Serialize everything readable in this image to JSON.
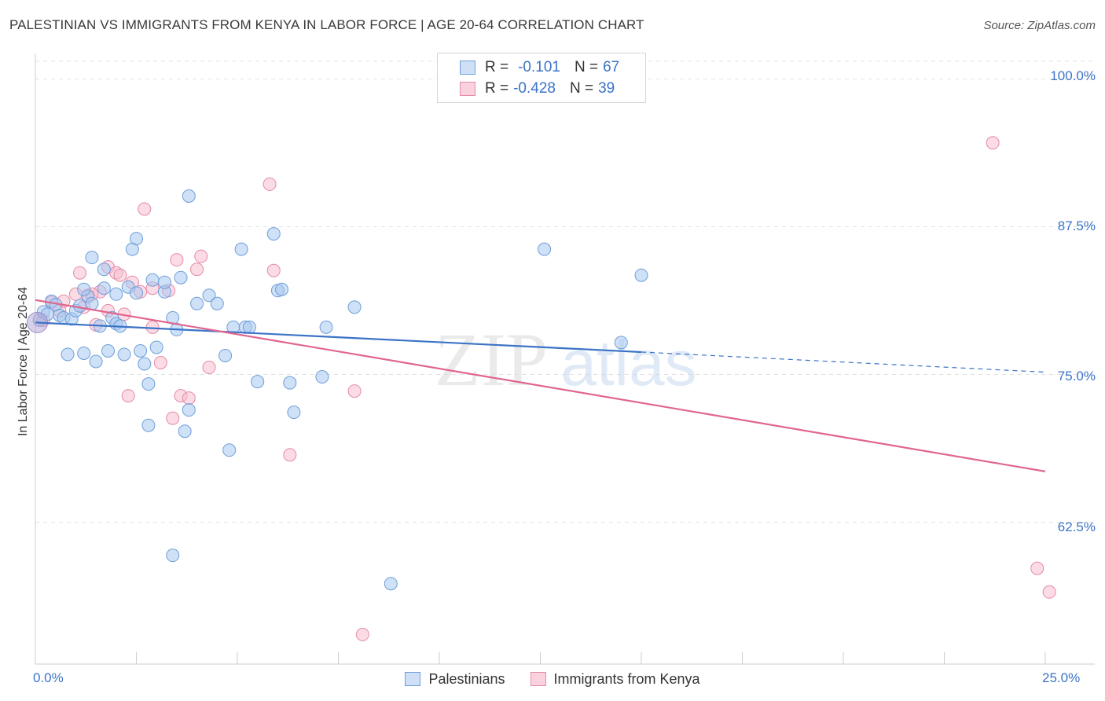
{
  "header": {
    "title": "PALESTINIAN VS IMMIGRANTS FROM KENYA IN LABOR FORCE | AGE 20-64 CORRELATION CHART",
    "source": "Source: ZipAtlas.com"
  },
  "watermark": {
    "text1": "ZIP",
    "text2": "atlas"
  },
  "legend": {
    "rows": [
      {
        "r_label": "R =",
        "r_value": "-0.101",
        "n_label": "N =",
        "n_value": "67",
        "color": "#a8c8f0",
        "border": "#6f9ed8"
      },
      {
        "r_label": "R =",
        "r_value": "-0.428",
        "n_label": "N =",
        "n_value": "39",
        "color": "#f8c0d0",
        "border": "#e48aa8"
      }
    ]
  },
  "bottom_legend": {
    "items": [
      {
        "label": "Palestinians",
        "color": "#a8c8f0",
        "border": "#6f9ed8"
      },
      {
        "label": "Immigrants from Kenya",
        "color": "#f8c0d0",
        "border": "#e48aa8"
      }
    ]
  },
  "chart_data": {
    "type": "scatter",
    "title": "PALESTINIAN VS IMMIGRANTS FROM KENYA IN LABOR FORCE | AGE 20-64 CORRELATION CHART",
    "xlabel": "",
    "ylabel": "In Labor Force | Age 20-64",
    "xlim": [
      0,
      25
    ],
    "ylim": [
      50.5,
      101.5
    ],
    "x_tick_labels": [
      "0.0%",
      "25.0%"
    ],
    "y_ticks": [
      62.5,
      75.0,
      87.5,
      100.0
    ],
    "y_tick_labels": [
      "62.5%",
      "75.0%",
      "87.5%",
      "100.0%"
    ],
    "grid": true,
    "legend_placement": "top-center",
    "series": [
      {
        "name": "Palestinians",
        "color": "#6f9ed8",
        "fill": "#a8c8f0",
        "trend": {
          "x0": 0,
          "y0": 79.4,
          "x1": 15,
          "y1": 76.9,
          "dash_to_x": 25,
          "dash_to_y": 75.2
        },
        "points": [
          [
            0.1,
            79.6
          ],
          [
            0.2,
            80.3
          ],
          [
            0.3,
            80.1
          ],
          [
            0.4,
            81.2
          ],
          [
            0.5,
            80.9
          ],
          [
            0.6,
            80.0
          ],
          [
            0.7,
            79.8
          ],
          [
            0.8,
            76.7
          ],
          [
            0.9,
            79.7
          ],
          [
            1.0,
            80.4
          ],
          [
            1.1,
            80.8
          ],
          [
            1.2,
            76.8
          ],
          [
            1.3,
            81.6
          ],
          [
            1.4,
            81.0
          ],
          [
            1.4,
            84.9
          ],
          [
            1.5,
            76.1
          ],
          [
            1.6,
            79.1
          ],
          [
            1.7,
            82.3
          ],
          [
            1.7,
            83.9
          ],
          [
            1.8,
            77.0
          ],
          [
            1.9,
            79.8
          ],
          [
            2.0,
            79.3
          ],
          [
            2.1,
            79.1
          ],
          [
            2.2,
            76.7
          ],
          [
            2.3,
            82.4
          ],
          [
            2.4,
            85.6
          ],
          [
            2.5,
            81.9
          ],
          [
            2.5,
            86.5
          ],
          [
            2.6,
            77.0
          ],
          [
            2.7,
            75.9
          ],
          [
            2.8,
            74.2
          ],
          [
            2.8,
            70.7
          ],
          [
            2.9,
            83.0
          ],
          [
            3.0,
            77.3
          ],
          [
            3.2,
            82.0
          ],
          [
            3.2,
            82.8
          ],
          [
            3.4,
            79.8
          ],
          [
            3.5,
            78.8
          ],
          [
            3.6,
            83.2
          ],
          [
            3.7,
            70.2
          ],
          [
            3.8,
            90.1
          ],
          [
            3.8,
            72.0
          ],
          [
            4.0,
            81.0
          ],
          [
            4.3,
            81.7
          ],
          [
            4.5,
            81.0
          ],
          [
            4.7,
            76.6
          ],
          [
            4.8,
            68.6
          ],
          [
            4.9,
            79.0
          ],
          [
            5.1,
            85.6
          ],
          [
            5.2,
            79.0
          ],
          [
            5.3,
            79.0
          ],
          [
            5.5,
            74.4
          ],
          [
            5.9,
            86.9
          ],
          [
            6.0,
            82.1
          ],
          [
            6.1,
            82.2
          ],
          [
            6.3,
            74.3
          ],
          [
            6.4,
            71.8
          ],
          [
            7.1,
            74.8
          ],
          [
            7.2,
            79.0
          ],
          [
            7.9,
            80.7
          ],
          [
            12.6,
            85.6
          ],
          [
            14.5,
            77.7
          ],
          [
            15.0,
            83.4
          ],
          [
            3.4,
            59.7
          ],
          [
            8.8,
            57.3
          ],
          [
            1.2,
            82.2
          ],
          [
            2.0,
            81.8
          ]
        ]
      },
      {
        "name": "Immigrants from Kenya",
        "color": "#e48aa8",
        "fill": "#f8c0d0",
        "trend": {
          "x0": 0,
          "y0": 81.3,
          "x1": 25,
          "y1": 66.8
        },
        "points": [
          [
            0.2,
            79.6
          ],
          [
            0.4,
            81.1
          ],
          [
            0.6,
            80.4
          ],
          [
            0.7,
            81.2
          ],
          [
            1.0,
            81.8
          ],
          [
            1.1,
            83.6
          ],
          [
            1.2,
            80.7
          ],
          [
            1.3,
            81.7
          ],
          [
            1.5,
            79.2
          ],
          [
            1.6,
            82.0
          ],
          [
            1.8,
            80.4
          ],
          [
            1.8,
            84.1
          ],
          [
            2.0,
            83.6
          ],
          [
            2.2,
            80.1
          ],
          [
            2.3,
            73.2
          ],
          [
            2.4,
            82.8
          ],
          [
            2.6,
            82.0
          ],
          [
            2.7,
            89.0
          ],
          [
            2.9,
            82.3
          ],
          [
            2.9,
            79.0
          ],
          [
            3.1,
            76.0
          ],
          [
            3.4,
            71.3
          ],
          [
            3.5,
            84.7
          ],
          [
            3.6,
            73.2
          ],
          [
            3.8,
            73.0
          ],
          [
            4.0,
            83.9
          ],
          [
            4.1,
            85.0
          ],
          [
            4.3,
            75.6
          ],
          [
            5.8,
            91.1
          ],
          [
            5.9,
            83.8
          ],
          [
            6.3,
            68.2
          ],
          [
            7.9,
            73.6
          ],
          [
            8.1,
            53.0
          ],
          [
            23.7,
            94.6
          ],
          [
            24.8,
            58.6
          ],
          [
            25.1,
            56.6
          ],
          [
            1.4,
            81.8
          ],
          [
            2.1,
            83.4
          ],
          [
            3.3,
            82.1
          ]
        ]
      }
    ]
  }
}
